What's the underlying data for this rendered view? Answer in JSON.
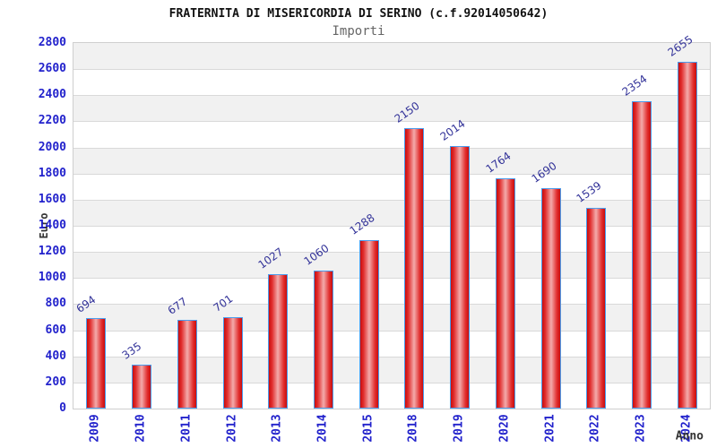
{
  "header": {
    "title": "FRATERNITA DI MISERICORDIA DI SERINO (c.f.92014050642)",
    "subtitle": "Importi"
  },
  "chart_data": {
    "type": "bar",
    "title": "FRATERNITA DI MISERICORDIA DI SERINO (c.f.92014050642)",
    "subtitle": "Importi",
    "xlabel": "Anno",
    "ylabel": "Euro",
    "categories": [
      "2009",
      "2010",
      "2011",
      "2012",
      "2013",
      "2014",
      "2015",
      "2018",
      "2019",
      "2020",
      "2021",
      "2022",
      "2023",
      "2024"
    ],
    "values": [
      694,
      335,
      677,
      701,
      1027,
      1060,
      1288,
      2150,
      2014,
      1764,
      1690,
      1539,
      2354,
      2655
    ],
    "ylim": [
      0,
      2800
    ],
    "ytick": 200,
    "grid": true,
    "legend": null,
    "colors": {
      "bar_edge": "#4a9ced",
      "bar_fill_dark": "#c90d0d",
      "bar_fill_light": "#f3abab",
      "tick_label": "#2222cc",
      "value_label": "#333399",
      "band_gray": "#f1f1f1",
      "band_white": "#ffffff",
      "grid_line": "#d9d9d9",
      "plot_border": "#cfcfcf",
      "axis_title": "#333333",
      "title": "#111111",
      "subtitle": "#666666"
    }
  }
}
